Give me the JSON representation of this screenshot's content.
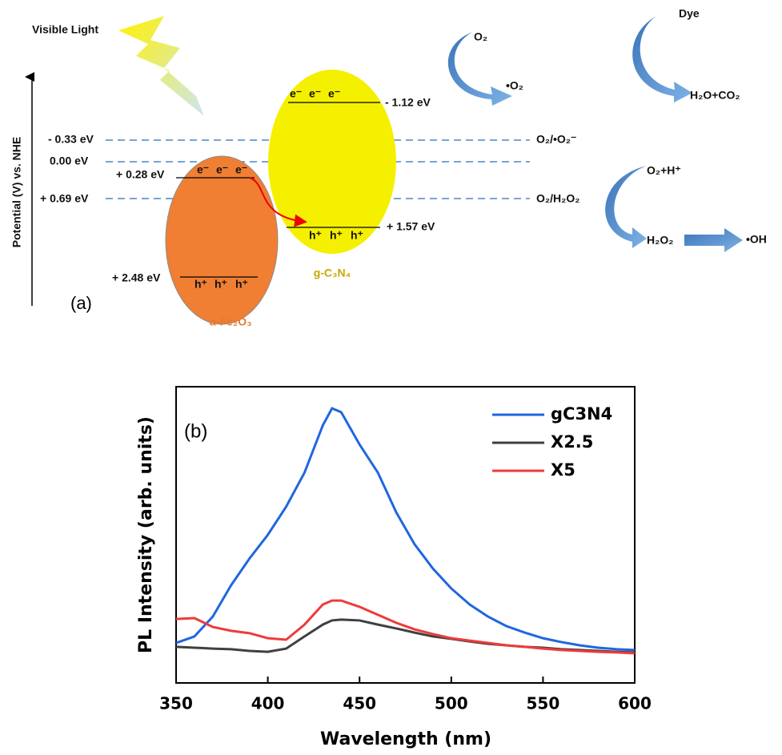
{
  "diagram": {
    "light_label": "Visible Light",
    "axis_label": "Potential (V) vs. NHE",
    "panel_label": "(a)",
    "levels": [
      "- 0.33 eV",
      "0.00 eV",
      "+ 0.69 eV"
    ],
    "couples": [
      "O₂/•O₂⁻",
      "O₂/H₂O₂"
    ],
    "fe2o3": {
      "name": "α-Fe₂O₃",
      "cb": "+ 0.28 eV",
      "vb": "+ 2.48 eV"
    },
    "gc3n4": {
      "name": "g-C₃N₄",
      "cb": "- 1.12 eV",
      "vb": "+ 1.57 eV"
    },
    "electron": "e⁻",
    "hole": "h⁺",
    "reactions": {
      "o2": "O₂",
      "superoxide": "•O₂",
      "dye": "Dye",
      "products": "H₂O+CO₂",
      "o2h": "O₂+H⁺",
      "h2o2": "H₂O₂",
      "oh": "•OH"
    }
  },
  "chart_data": {
    "type": "line",
    "panel_label": "(b)",
    "xlabel": "Wavelength (nm)",
    "ylabel": "PL Intensity (arb. units)",
    "x": [
      350,
      360,
      370,
      380,
      390,
      400,
      410,
      420,
      430,
      435,
      440,
      450,
      460,
      470,
      480,
      490,
      500,
      510,
      520,
      530,
      540,
      550,
      560,
      570,
      580,
      590,
      600
    ],
    "xlim": [
      350,
      600
    ],
    "xticks": [
      350,
      400,
      450,
      500,
      550,
      600
    ],
    "ylim": [
      0,
      100
    ],
    "legend": "upper right",
    "series": [
      {
        "name": "gC3N4",
        "color": "#1f66e0",
        "values": [
          13.5,
          15.7,
          22.4,
          33,
          42,
          50,
          59.5,
          71,
          87,
          92.7,
          91.4,
          80.5,
          71,
          57.6,
          46.8,
          38.6,
          31.9,
          26.5,
          22.4,
          19.2,
          17,
          15.1,
          13.8,
          12.7,
          11.9,
          11.4,
          11.1
        ]
      },
      {
        "name": "X2.5",
        "color": "#404040",
        "values": [
          12.2,
          11.9,
          11.6,
          11.4,
          10.8,
          10.5,
          11.6,
          15.7,
          19.7,
          21.1,
          21.4,
          21.1,
          19.7,
          18.4,
          17,
          15.7,
          14.9,
          14,
          13.2,
          12.7,
          12.2,
          11.9,
          11.4,
          11.1,
          10.8,
          10.5,
          10.3
        ]
      },
      {
        "name": "X5",
        "color": "#ee3b3b",
        "values": [
          21.6,
          21.9,
          18.9,
          17.6,
          16.8,
          15.1,
          14.6,
          19.7,
          26.5,
          27.8,
          27.8,
          25.7,
          23,
          20.3,
          18.1,
          16.5,
          15.1,
          14.3,
          13.5,
          12.7,
          12.2,
          11.6,
          11.1,
          10.8,
          10.5,
          10.3,
          10
        ]
      }
    ]
  }
}
